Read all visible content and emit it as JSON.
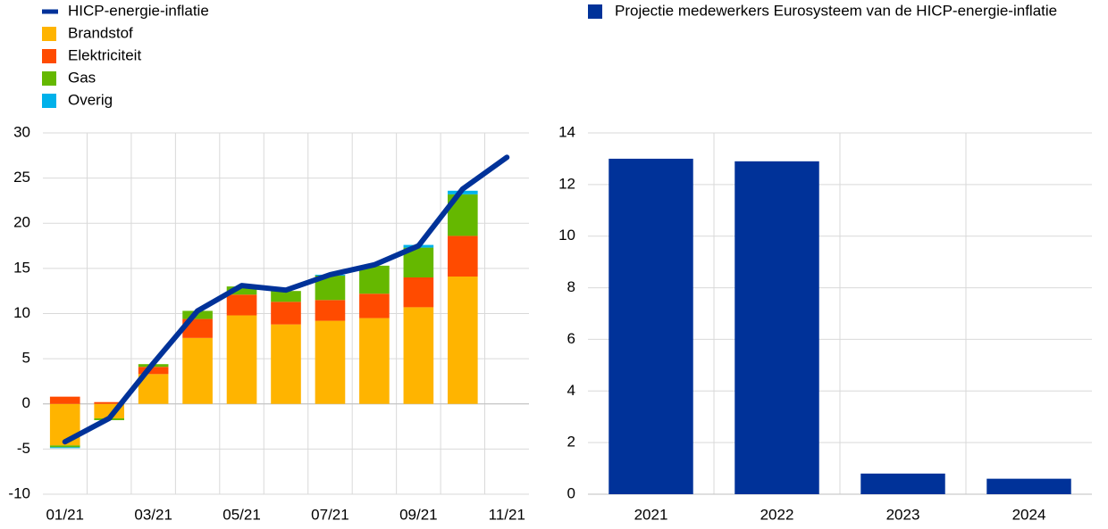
{
  "chart_data": [
    {
      "type": "bar",
      "stacked": true,
      "grid": true,
      "categories": [
        "01/21",
        null,
        "03/21",
        null,
        "05/21",
        null,
        "07/21",
        null,
        "09/21",
        null,
        "11/21"
      ],
      "ylim": [
        -10,
        30
      ],
      "yticks": [
        -10,
        -5,
        0,
        5,
        10,
        15,
        20,
        25,
        30
      ],
      "series": [
        {
          "name": "HICP-energie-inflatie",
          "type": "line",
          "color": "#003299",
          "values": [
            -4.2,
            -1.6,
            4.5,
            10.3,
            13.1,
            12.6,
            14.3,
            15.4,
            17.5,
            23.8,
            27.3
          ]
        },
        {
          "name": "Brandstof",
          "color": "#ffb400",
          "values": [
            -4.6,
            -1.6,
            3.3,
            7.3,
            9.8,
            8.8,
            9.2,
            9.5,
            10.7,
            14.1,
            null
          ]
        },
        {
          "name": "Elektriciteit",
          "color": "#ff4b00",
          "values": [
            0.8,
            0.2,
            0.8,
            2.1,
            2.3,
            2.5,
            2.3,
            2.7,
            3.3,
            4.5,
            null
          ]
        },
        {
          "name": "Gas",
          "color": "#65b800",
          "values": [
            -0.2,
            -0.2,
            0.3,
            0.9,
            0.9,
            1.2,
            2.7,
            3.1,
            3.3,
            4.6,
            null
          ]
        },
        {
          "name": "Overig",
          "color": "#00b1ea",
          "values": [
            -0.1,
            0,
            0,
            0,
            0,
            0,
            0.1,
            0,
            0.3,
            0.4,
            null
          ]
        }
      ]
    },
    {
      "type": "bar",
      "grid": true,
      "categories": [
        "2021",
        "2022",
        "2023",
        "2024"
      ],
      "ylim": [
        0,
        14
      ],
      "yticks": [
        0,
        2,
        4,
        6,
        8,
        10,
        12,
        14
      ],
      "series": [
        {
          "name": "Projectie medewerkers Eurosysteem van de HICP-energie-inflatie",
          "color": "#003299",
          "values": [
            13.0,
            12.9,
            0.8,
            0.6
          ]
        }
      ]
    }
  ]
}
